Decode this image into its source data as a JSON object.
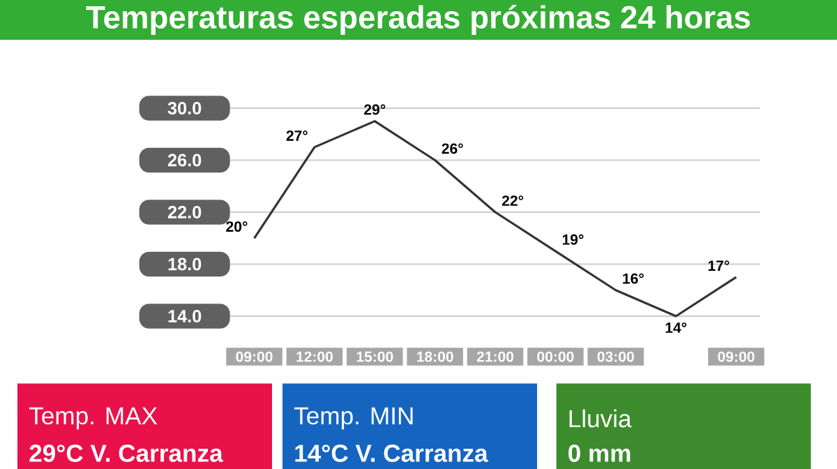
{
  "chart_data": {
    "type": "line",
    "title": "Temperaturas esperadas próximas 24 horas",
    "categories": [
      "09:00",
      "12:00",
      "15:00",
      "18:00",
      "21:00",
      "00:00",
      "03:00",
      null,
      "09:00"
    ],
    "values": [
      20,
      27,
      29,
      26,
      22,
      19,
      16,
      14,
      17
    ],
    "value_labels": [
      "20°",
      "27°",
      "29°",
      "26°",
      "22°",
      "19°",
      "16°",
      "14°",
      "17°"
    ],
    "color": "#333333",
    "ylim": [
      14,
      30
    ],
    "yticks": [
      {
        "value": 14,
        "label": "14.0"
      },
      {
        "value": 18,
        "label": "18.0"
      },
      {
        "value": 22,
        "label": "22.0"
      },
      {
        "value": 26,
        "label": "26.0"
      },
      {
        "value": 30,
        "label": "30.0"
      }
    ],
    "grid": "y",
    "marker": "none",
    "line_style": "solid",
    "annotations": [
      "Temp. MAX",
      "29°C  V. Carranza",
      "Temp. MIN",
      "14°C  V. Carranza",
      "Lluvia",
      "0 mm"
    ]
  }
}
